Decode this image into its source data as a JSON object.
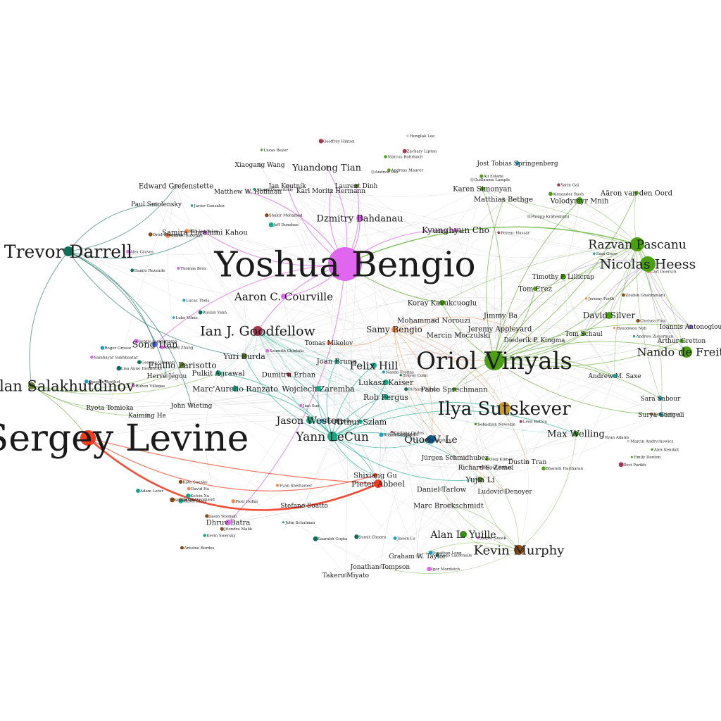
{
  "nodes": [
    {
      "id": "bengio",
      "label": "Yoshua Bengio",
      "color": "#e066f0"
    },
    {
      "id": "levine",
      "label": "Sergey Levine",
      "color": "#f23a1f"
    },
    {
      "id": "vinyals",
      "label": "Oriol Vinyals",
      "color": "#4aa010"
    },
    {
      "id": "sutskever",
      "label": "Ilya Sutskever",
      "color": "#c89a2a"
    },
    {
      "id": "darrell",
      "label": "Trevor Darrell",
      "color": "#0f6e5a"
    },
    {
      "id": "salakhutdinov",
      "label": "Ruslan Salakhutdinov",
      "color": "#5f7f2a"
    },
    {
      "id": "goodfellow",
      "label": "Ian J. Goodfellow",
      "color": "#a8364e"
    },
    {
      "id": "courville",
      "label": "Aaron C. Courville",
      "color": "#e066f0"
    },
    {
      "id": "pascanu",
      "label": "Razvan Pascanu",
      "color": "#4aa010"
    },
    {
      "id": "heess",
      "label": "Nicolas Heess",
      "color": "#4aa010"
    },
    {
      "id": "defreitas",
      "label": "Nando de Freitas",
      "color": "#4aa010"
    },
    {
      "id": "murphy",
      "label": "Kevin Murphy",
      "color": "#8a4a14"
    },
    {
      "id": "lecun",
      "label": "Yann LeCun",
      "color": "#17a88a"
    },
    {
      "id": "abbeel",
      "label": "Pieter Abbeel",
      "color": "#f23a1f"
    },
    {
      "id": "quoc",
      "label": "Quoc V. Le",
      "color": "#0d5c8c"
    },
    {
      "id": "weston",
      "label": "Jason Weston",
      "color": "#17a88a"
    },
    {
      "id": "felix",
      "label": "Felix Hill",
      "color": "#17a88a"
    },
    {
      "id": "bahdanau",
      "label": "Dzmitry Bahdanau",
      "color": "#e066f0"
    },
    {
      "id": "kavukcuoglu",
      "label": "Koray Kavukcuoglu",
      "color": "#4aa010"
    },
    {
      "id": "yuille",
      "label": "Alan L. Yuille",
      "color": "#3a8a1a"
    },
    {
      "id": "welling",
      "label": "Max Welling",
      "color": "#3a8a1a"
    },
    {
      "id": "tian",
      "label": "Yuandong Tian",
      "color": "#c9c9c9"
    },
    {
      "id": "bengio_s",
      "label": "Samy Bengio",
      "color": "#f08a4a"
    },
    {
      "id": "songhan",
      "label": "Song Han",
      "color": "#4a6ae0"
    },
    {
      "id": "cho",
      "label": "Kyunghyun Cho",
      "color": "#e066f0"
    },
    {
      "id": "silver",
      "label": "David Silver",
      "color": "#4aa010"
    },
    {
      "id": "mnih",
      "label": "Volodymyr Mnih",
      "color": "#4aa010"
    },
    {
      "id": "simonyan",
      "label": "Karen Simonyan",
      "color": "#4aa010"
    },
    {
      "id": "vandenoord",
      "label": "Aäron van den Oord",
      "color": "#4aa010"
    },
    {
      "id": "parisotto",
      "label": "Emilio Parisotto",
      "color": "#5f7f2a"
    },
    {
      "id": "ranzato",
      "label": "Marc'Aurelio Ranzato",
      "color": "#17a88a"
    },
    {
      "id": "fergus",
      "label": "Rob Fergus",
      "color": "#17a88a"
    },
    {
      "id": "szlam",
      "label": "Arthur Szlam",
      "color": "#17a88a"
    },
    {
      "id": "zaremba",
      "label": "Wojciech Zaremba",
      "color": "#17a88a"
    },
    {
      "id": "kaiser",
      "label": "Lukasz Kaiser",
      "color": "#17a88a"
    },
    {
      "id": "sprechmann",
      "label": "Pablo Sprechmann",
      "color": "#4aa010"
    },
    {
      "id": "norouzi",
      "label": "Mohammad Norouzi",
      "color": "#c9c9c9"
    },
    {
      "id": "appleyard",
      "label": "Jeremy Appleyard",
      "color": "#c9c9c9"
    },
    {
      "id": "moczulski",
      "label": "Marcin Moczulski",
      "color": "#c9c9c9"
    },
    {
      "id": "kingma",
      "label": "Diederik P. Kingma",
      "color": "#c9c9c9"
    },
    {
      "id": "lillicrap",
      "label": "Timothy P. Lillicrap",
      "color": "#4aa010"
    },
    {
      "id": "erez",
      "label": "Tom Erez",
      "color": "#4aa010"
    },
    {
      "id": "schaul",
      "label": "Tom Schaul",
      "color": "#4aa010"
    },
    {
      "id": "antonoglou",
      "label": "Ioannis Antonoglou",
      "color": "#9a6ae0"
    },
    {
      "id": "gretton",
      "label": "Arthur Gretton",
      "color": "#4aa010"
    },
    {
      "id": "saxe",
      "label": "Andrew M. Saxe",
      "color": "#1aa0a0"
    },
    {
      "id": "ganguli",
      "label": "Surya Ganguli",
      "color": "#1aa0a0"
    },
    {
      "id": "sabour",
      "label": "Sara Sabour",
      "color": "#1aa0a0"
    },
    {
      "id": "schmidhuber",
      "label": "Jürgen Schmidhuber",
      "color": "#c9c9c9"
    },
    {
      "id": "zemel",
      "label": "Richard S. Zemel",
      "color": "#c9c9c9"
    },
    {
      "id": "yujia",
      "label": "Yujia Li",
      "color": "#5f7f2a"
    },
    {
      "id": "tarlow",
      "label": "Daniel Tarlow",
      "color": "#c9c9c9"
    },
    {
      "id": "brockschmidt",
      "label": "Marc Brockschmidt",
      "color": "#c9c9c9"
    },
    {
      "id": "denoyer",
      "label": "Ludovic Denoyer",
      "color": "#c9c9c9"
    },
    {
      "id": "tran",
      "label": "Dustin Tran",
      "color": "#c9c9c9"
    },
    {
      "id": "batra",
      "label": "Dhruv Batra",
      "color": "#e066f0"
    },
    {
      "id": "soatto",
      "label": "Stefano Soatto",
      "color": "#c9c9c9"
    },
    {
      "id": "tompson",
      "label": "Jonathan Tompson",
      "color": "#c9c9c9"
    },
    {
      "id": "taylor",
      "label": "Graham W. Taylor",
      "color": "#c9c9c9"
    },
    {
      "id": "miyato",
      "label": "Takeru Miyato",
      "color": "#c9c9c9"
    },
    {
      "id": "wiseman",
      "label": "John Wieting",
      "color": "#c9c9c9"
    },
    {
      "id": "grefenstette",
      "label": "Edward Grefenstette",
      "color": "#c9c9c9"
    },
    {
      "id": "bethge",
      "label": "Matthias Bethge",
      "color": "#c9c9c9"
    },
    {
      "id": "springenberg",
      "label": "Jost Tobias Springenberg",
      "color": "#1aa0c8"
    },
    {
      "id": "wang",
      "label": "Xiaogang Wang",
      "color": "#c9c9c9"
    },
    {
      "id": "roggenfeld",
      "label": "Jan Koutník",
      "color": "#c9c9c9"
    },
    {
      "id": "hermann",
      "label": "Karl Moritz Hermann",
      "color": "#c9c9c9"
    },
    {
      "id": "hoffman",
      "label": "Matthew W. Hoffman",
      "color": "#c9c9c9"
    },
    {
      "id": "dinh",
      "label": "Laurent Dinh",
      "color": "#5f7f2a"
    },
    {
      "id": "kahou",
      "label": "Samira Ebrahimi Kahou",
      "color": "#e066f0"
    },
    {
      "id": "ba",
      "label": "Jimmy Ba",
      "color": "#c9c9c9"
    },
    {
      "id": "burda",
      "label": "Yuri Burda",
      "color": "#5f7f2a"
    },
    {
      "id": "pulkit",
      "label": "Pulkit Agrawal",
      "color": "#17a88a"
    },
    {
      "id": "erhan",
      "label": "Dumitru Erhan",
      "color": "#a8364e"
    },
    {
      "id": "bruna",
      "label": "Joan Bruna",
      "color": "#17a88a"
    },
    {
      "id": "mikolov",
      "label": "Tomas Mikolov",
      "color": "#f08a4a"
    },
    {
      "id": "jegou",
      "label": "Hervé Jégou",
      "color": "#c9c9c9"
    },
    {
      "id": "kyota",
      "label": "Ryota Tomioka",
      "color": "#c9c9c9"
    },
    {
      "id": "gu",
      "label": "Shixiang Gu",
      "color": "#f23a1f"
    },
    {
      "id": "kaiming",
      "label": "Kaiming He",
      "color": "#c9c9c9"
    },
    {
      "id": "paul",
      "label": "Paul Smolensky",
      "color": "#c9c9c9"
    }
  ],
  "edge_colors": {
    "levine": "#f23a1f",
    "bengio": "#e066f0",
    "green": "#4aa010",
    "teal": "#17a88a",
    "darrell": "#0f6e5a",
    "gray": "#bdbdbd",
    "orange": "#f08a4a",
    "purple": "#9a6ae0"
  },
  "tiny_labels": [
    "Andreas Maurer",
    "Javier Gonzalez",
    "Alex Graves",
    "Guillaume Lample",
    "Jeremy Forth",
    "Nando Freitas",
    "Corinna Cortes",
    "Jason Yosinski",
    "Hugo Larochelle",
    "Alex Kendall",
    "Kelvin Xu",
    "Ruben Villegas",
    "Honglak Lee",
    "Max Jaderberg",
    "Lucas Theis",
    "Ferenc Huszár",
    "Chelsea Finn",
    "Trevor Cohn",
    "Oleg Klimov",
    "John Schulman",
    "Igor Mordatch",
    "Marcin Andrychowicz",
    "David Ha",
    "Quentin Berthet",
    "Zachary Lipton",
    "Shakir Mohamed",
    "Danilo Rezende",
    "Ali Eslami",
    "Andrew Zisserman",
    "Jian Sun",
    "Ross Girshick",
    "Piotr Dollár",
    "Jiasen Lu",
    "Devi Parikh",
    "Stefan Lee",
    "Georgia Gkioxari",
    "Lucas Beyer",
    "Alexey Dosovitskiy",
    "Thomas Brox",
    "Philipp Fischer",
    "Hyeonwoo Noh",
    "Ronan Collobert",
    "Léon Bottou",
    "Antoine Bordes",
    "Sumit Chopra",
    "Emily Denton",
    "Adam Lerer",
    "Sainbayar Sukhbaatar",
    "Andrew Dai",
    "Samuel Bowman",
    "Luke Vilnis",
    "Yarin Gal",
    "Zoubin Ghahramani",
    "Richard Turner",
    "Sebastian Nowozin",
    "Kevin Swersky",
    "Jasper Snoek",
    "Ryan Adams",
    "David Duvenaud",
    "Roger Grosse",
    "Geoffrey Hinton",
    "Oriol Simonyan",
    "Ruslan Yann",
    "Alexander Rush",
    "Sam Gross",
    "Soumith Chintala",
    "Yangqing Jia",
    "Evan Shelhamer",
    "Jonathan Long",
    "Judy Hoffman",
    "Kate Saenko",
    "Lisa Anne Hendricks",
    "Marcus Rohrbach",
    "Jeff Donahue",
    "Sergio Guadarrama",
    "Philipp Krähenbühl",
    "Carl Doersch",
    "Abhinav Gupta",
    "Deepak Pathak",
    "Jitendra Malik",
    "Saurabh Gupta",
    "Bharath Hariharan",
    "Alexei Efros",
    "Richard Zhang"
  ]
}
